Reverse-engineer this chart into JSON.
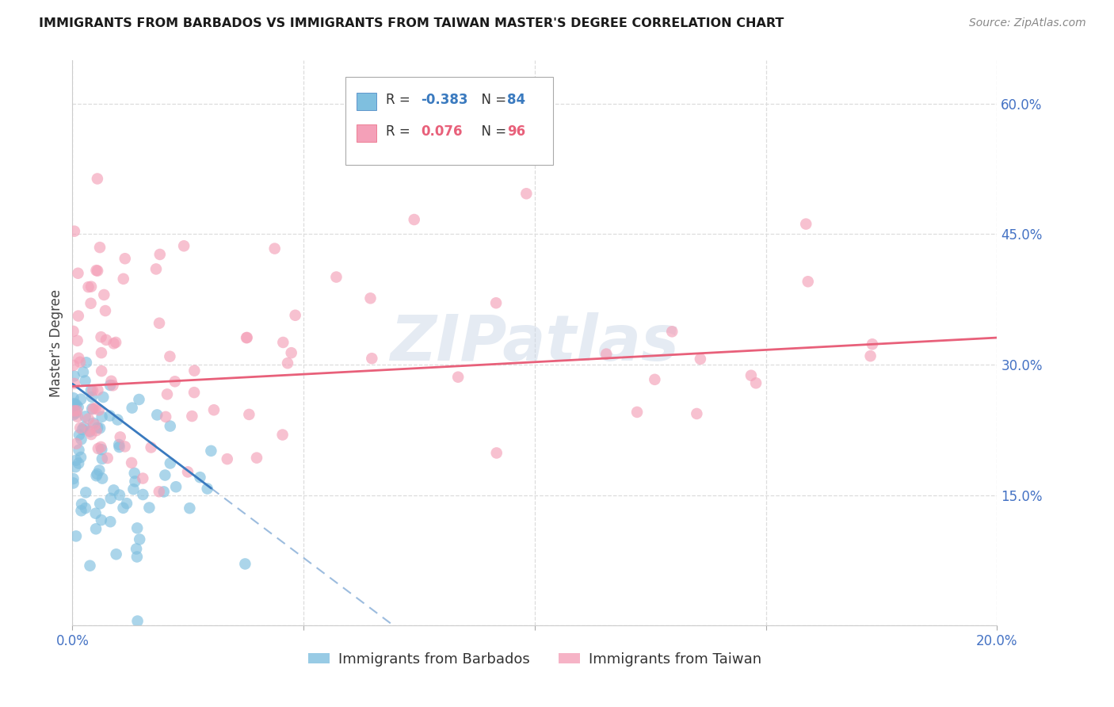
{
  "title": "IMMIGRANTS FROM BARBADOS VS IMMIGRANTS FROM TAIWAN MASTER'S DEGREE CORRELATION CHART",
  "source": "Source: ZipAtlas.com",
  "xlabel_barbados": "Immigrants from Barbados",
  "xlabel_taiwan": "Immigrants from Taiwan",
  "ylabel": "Master's Degree",
  "xlim": [
    0.0,
    0.2
  ],
  "ylim": [
    0.0,
    0.65
  ],
  "barbados_R": -0.383,
  "barbados_N": 84,
  "taiwan_R": 0.076,
  "taiwan_N": 96,
  "barbados_color": "#7fbfdf",
  "taiwan_color": "#f4a0b8",
  "barbados_line_color": "#3a7abf",
  "taiwan_line_color": "#e8607a",
  "watermark": "ZIPatlas",
  "tick_color": "#4472c4",
  "grid_color": "#dddddd",
  "title_color": "#1a1a1a",
  "source_color": "#888888",
  "ylabel_color": "#444444"
}
